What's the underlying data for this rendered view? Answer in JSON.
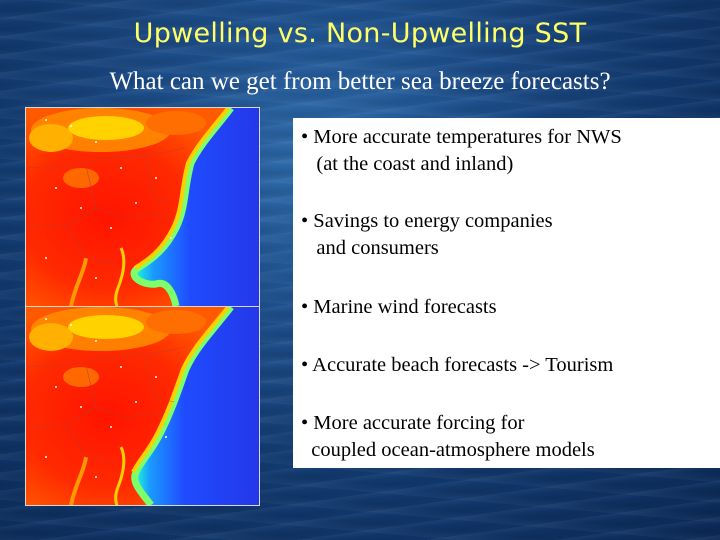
{
  "slide": {
    "title": "Upwelling vs. Non-Upwelling SST",
    "subtitle": "What can we get from better sea breeze forecasts?",
    "bullets": [
      "• More accurate temperatures for NWS\n   (at the coast and inland)",
      "• Savings to energy companies\n   and consumers",
      "• Marine wind forecasts",
      "• Accurate beach forecasts -> Tourism",
      "• More accurate forcing for\n  coupled ocean-atmosphere models"
    ]
  },
  "colors": {
    "title": "#ffff66",
    "subtitle": "#ffffff",
    "hot": "#ff1a00",
    "warm": "#ff8c00",
    "land_mild": "#ffd400",
    "coast": "#7cff6b",
    "ocean": "#1e4cff"
  },
  "maps": [
    {
      "name": "upwelling-sst-forecast-map"
    },
    {
      "name": "non-upwelling-sst-forecast-map"
    }
  ]
}
